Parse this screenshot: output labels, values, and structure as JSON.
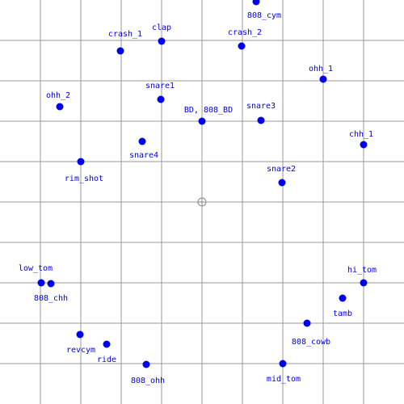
{
  "colors": {
    "background": "#ffffff",
    "grid_line": "#999999",
    "point": "#0000ee",
    "label": "#0000ee",
    "center_marker": "#888888"
  },
  "center_marker": {
    "icon": "crosshair-circle-icon"
  },
  "points": [
    {
      "name": "808_cym",
      "label": "808_cym"
    },
    {
      "name": "clap",
      "label": "clap"
    },
    {
      "name": "crash_1",
      "label": "crash_1"
    },
    {
      "name": "crash_2",
      "label": "crash_2"
    },
    {
      "name": "ohh_1",
      "label": "ohh_1"
    },
    {
      "name": "ohh_2",
      "label": "ohh_2"
    },
    {
      "name": "snare1",
      "label": "snare1"
    },
    {
      "name": "BD",
      "label": "BD, 808_BD"
    },
    {
      "name": "snare3",
      "label": "snare3"
    },
    {
      "name": "chh_1",
      "label": "chh_1"
    },
    {
      "name": "snare4",
      "label": "snare4"
    },
    {
      "name": "rim_shot",
      "label": "rim_shot"
    },
    {
      "name": "snare2",
      "label": "snare2"
    },
    {
      "name": "low_tom",
      "label": "low_tom"
    },
    {
      "name": "808_chh",
      "label": "808_chh"
    },
    {
      "name": "hi_tom",
      "label": "hi_tom"
    },
    {
      "name": "tamb",
      "label": "tamb"
    },
    {
      "name": "808_cowb",
      "label": "808_cowb"
    },
    {
      "name": "revcym",
      "label": "revcym"
    },
    {
      "name": "ride",
      "label": "ride"
    },
    {
      "name": "808_ohh",
      "label": "808_ohh"
    },
    {
      "name": "mid_tom",
      "label": "mid_tom"
    }
  ]
}
